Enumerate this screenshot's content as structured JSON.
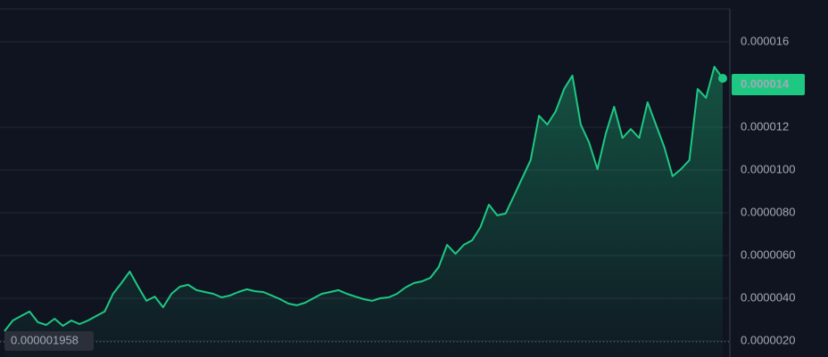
{
  "chart_data": {
    "type": "line",
    "series": [
      {
        "color": "#1ec882",
        "values": [
          2.46e-06,
          2.96e-06,
          3.17e-06,
          3.38e-06,
          2.88e-06,
          2.75e-06,
          3.04e-06,
          2.71e-06,
          2.96e-06,
          2.79e-06,
          2.96e-06,
          3.17e-06,
          3.38e-06,
          4.21e-06,
          4.71e-06,
          5.25e-06,
          4.54e-06,
          3.88e-06,
          4.08e-06,
          3.58e-06,
          4.21e-06,
          4.54e-06,
          4.63e-06,
          4.38e-06,
          4.29e-06,
          4.21e-06,
          4.04e-06,
          4.13e-06,
          4.29e-06,
          4.42e-06,
          4.33e-06,
          4.29e-06,
          4.13e-06,
          3.96e-06,
          3.75e-06,
          3.67e-06,
          3.79e-06,
          4e-06,
          4.21e-06,
          4.29e-06,
          4.38e-06,
          4.21e-06,
          4.08e-06,
          3.96e-06,
          3.88e-06,
          4e-06,
          4.04e-06,
          4.21e-06,
          4.5e-06,
          4.71e-06,
          4.79e-06,
          4.96e-06,
          5.46e-06,
          6.5e-06,
          6.08e-06,
          6.5e-06,
          6.71e-06,
          7.33e-06,
          8.38e-06,
          7.88e-06,
          7.96e-06,
          8.79e-06,
          9.63e-06,
          1.046e-05,
          1.254e-05,
          1.213e-05,
          1.275e-05,
          1.379e-05,
          1.442e-05,
          1.213e-05,
          1.129e-05,
          1.004e-05,
          1.171e-05,
          1.296e-05,
          1.15e-05,
          1.192e-05,
          1.15e-05,
          1.317e-05,
          1.213e-05,
          1.108e-05,
          9.71e-06,
          1.004e-05,
          1.046e-05,
          1.379e-05,
          1.338e-05,
          1.483e-05,
          1.429e-05
        ]
      }
    ],
    "ylim": [
      1.25e-06,
      1.754e-05
    ],
    "yticks": [
      {
        "value": 1.6e-05,
        "label": "0.000016"
      },
      {
        "value": 1.2e-05,
        "label": "0.000012"
      },
      {
        "value": 1e-05,
        "label": "0.0000100"
      },
      {
        "value": 8e-06,
        "label": "0.0000080"
      },
      {
        "value": 6e-06,
        "label": "0.0000060"
      },
      {
        "value": 4e-06,
        "label": "0.0000040"
      },
      {
        "value": 2e-06,
        "label": "0.0000020"
      }
    ],
    "grid": true,
    "last_price": {
      "value": 1.4e-05,
      "label": "0.000014"
    },
    "low_price": {
      "value": 1.958e-06,
      "label": "0.000001958"
    }
  }
}
